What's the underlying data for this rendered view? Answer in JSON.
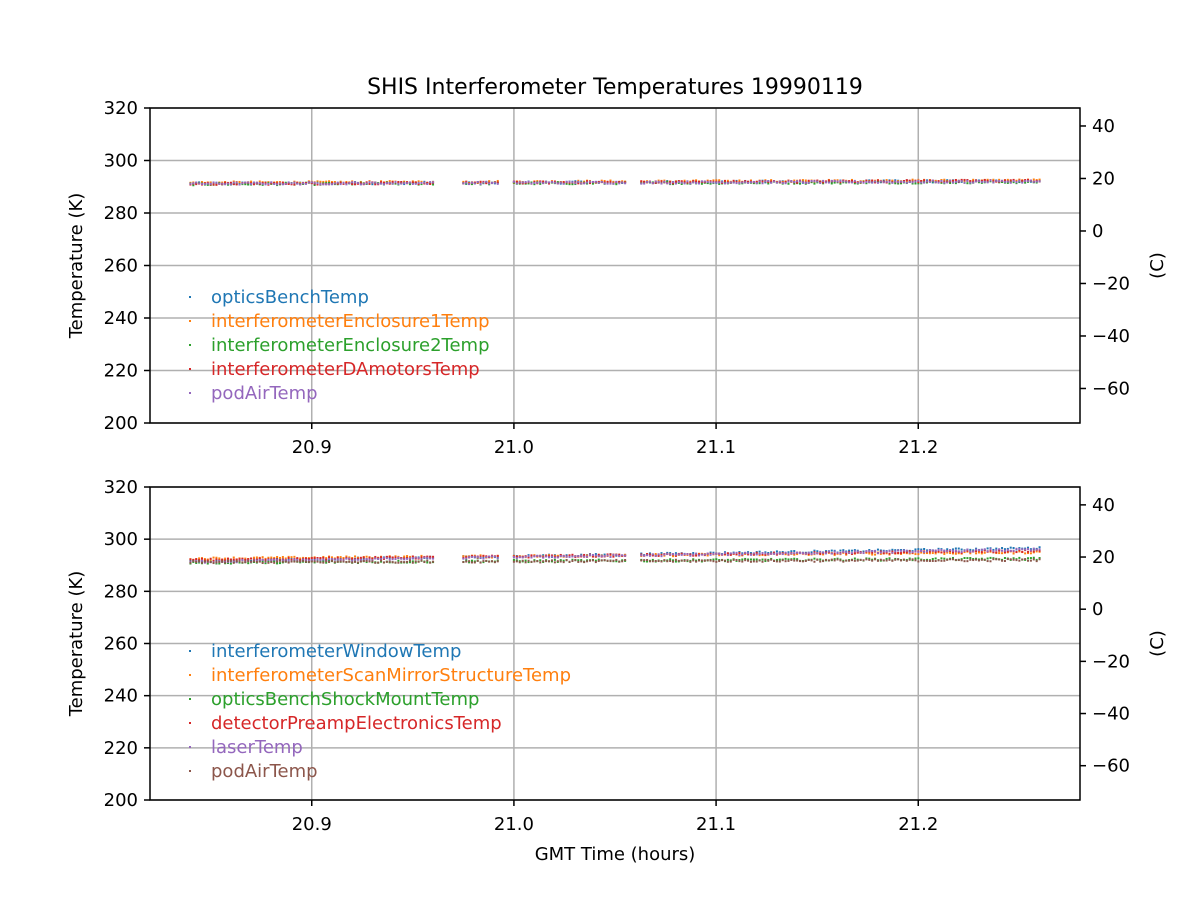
{
  "colors": {
    "c1": "#1f77b4",
    "c2": "#ff7f0e",
    "c3": "#2ca02c",
    "c4": "#d62728",
    "c5": "#9467bd",
    "c6": "#8c564b"
  },
  "chart_data": {
    "title": "SHIS Interferometer Temperatures 19990119",
    "xlabel": "GMT Time (hours)",
    "panels": [
      {
        "type": "scatter",
        "xlim": [
          20.82,
          21.28
        ],
        "ylim": [
          200,
          320
        ],
        "xticks": [
          20.9,
          21.0,
          21.1,
          21.2
        ],
        "yticks": [
          200,
          220,
          240,
          260,
          280,
          300,
          320
        ],
        "ylabel": "Temperature (K)",
        "y2label": "(C)",
        "y2ticks": [
          40,
          20,
          0,
          -20,
          -40,
          -60
        ],
        "grid": true,
        "legend_loc": "lower-left",
        "segments": [
          [
            20.84,
            20.96
          ],
          [
            20.975,
            20.992
          ],
          [
            21.0,
            21.055
          ],
          [
            21.063,
            21.26
          ]
        ],
        "series": [
          {
            "name": "opticsBenchTemp",
            "color": "#1f77b4",
            "y_start": 291.2,
            "y_end": 292.2
          },
          {
            "name": "interferometerEnclosure1Temp",
            "color": "#ff7f0e",
            "y_start": 291.5,
            "y_end": 292.4
          },
          {
            "name": "interferometerEnclosure2Temp",
            "color": "#2ca02c",
            "y_start": 291.0,
            "y_end": 291.8
          },
          {
            "name": "interferometerDAmotorsTemp",
            "color": "#d62728",
            "y_start": 291.1,
            "y_end": 292.3
          },
          {
            "name": "podAirTemp",
            "color": "#9467bd",
            "y_start": 291.2,
            "y_end": 292.0
          }
        ]
      },
      {
        "type": "scatter",
        "xlim": [
          20.82,
          21.28
        ],
        "ylim": [
          200,
          320
        ],
        "xticks": [
          20.9,
          21.0,
          21.1,
          21.2
        ],
        "yticks": [
          200,
          220,
          240,
          260,
          280,
          300,
          320
        ],
        "ylabel": "Temperature (K)",
        "y2label": "(C)",
        "y2ticks": [
          40,
          20,
          0,
          -20,
          -40,
          -60
        ],
        "grid": true,
        "legend_loc": "lower-left",
        "segments": [
          [
            20.84,
            20.96
          ],
          [
            20.975,
            20.992
          ],
          [
            21.0,
            21.055
          ],
          [
            21.063,
            21.26
          ]
        ],
        "series": [
          {
            "name": "interferometerWindowTemp",
            "color": "#1f77b4",
            "y_start": 291.5,
            "y_end": 296.5
          },
          {
            "name": "interferometerScanMirrorStructureTemp",
            "color": "#ff7f0e",
            "y_start": 292.5,
            "y_end": 295.0
          },
          {
            "name": "opticsBenchShockMountTemp",
            "color": "#2ca02c",
            "y_start": 291.0,
            "y_end": 292.5
          },
          {
            "name": "detectorPreampElectronicsTemp",
            "color": "#d62728",
            "y_start": 292.0,
            "y_end": 295.5
          },
          {
            "name": "laserTemp",
            "color": "#9467bd",
            "y_start": 291.3,
            "y_end": 296.0
          },
          {
            "name": "podAirTemp",
            "color": "#8c564b",
            "y_start": 291.2,
            "y_end": 292.0
          }
        ]
      }
    ]
  }
}
